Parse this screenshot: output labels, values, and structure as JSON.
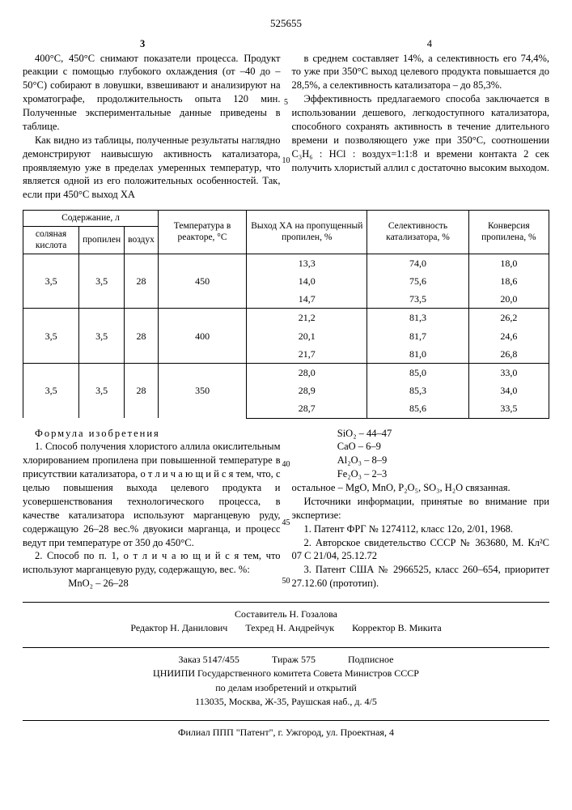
{
  "docNumber": "525655",
  "pageLeft": "3",
  "pageRight": "4",
  "lineMarks": {
    "a": "5",
    "b": "10",
    "c": "40",
    "d": "45",
    "e": "50"
  },
  "body": {
    "p1": "400°С, 450°С снимают показатели процесса. Продукт реакции с помощью глубокого охлаждения (от –40 до –50°С) собирают в ловушки, взвешивают и анализируют на хроматографе, продолжительность опыта 120 мин. Полученные экспериментальные данные приведены в таблице.",
    "p2": "Как видно из таблицы, полученные результаты наглядно демонстрируют наивысшую активность катализатора, проявляемую уже в пределах умеренных температур, что является одной из его положительных особенностей. Так, если при 450°С выход ХА",
    "p3": "в среднем составляет 14%, а селективность его 74,4%, то уже при 350°С выход целевого продукта повышается до 28,5%, а селективность катализатора – до 85,3%.",
    "p4": "Эффективность предлагаемого способа заключается в использовании дешевого, легкодоступного катализатора, способного сохранять активность в течение длительного времени и позволяющего уже при 350°С, соотношении C₃H₆ : HCl : воздух=1:1:8 и времени контакта 2 сек получить хлористый аллил с достаточно высоким выходом."
  },
  "table": {
    "headGroup1": "Содержание, л",
    "headTemp": "Температура в реакторе, °С",
    "headYield": "Выход ХА на пропущенный пропилен, %",
    "headSel": "Селективность катализатора, %",
    "headConv": "Конверсия пропилена, %",
    "sub1": "соляная кислота",
    "sub2": "пропилен",
    "sub3": "воздух",
    "groups": [
      {
        "hcl": "3,5",
        "prop": "3,5",
        "air": "28",
        "temp": "450",
        "rows": [
          [
            "13,3",
            "74,0",
            "18,0"
          ],
          [
            "14,0",
            "75,6",
            "18,6"
          ],
          [
            "14,7",
            "73,5",
            "20,0"
          ]
        ]
      },
      {
        "hcl": "3,5",
        "prop": "3,5",
        "air": "28",
        "temp": "400",
        "rows": [
          [
            "21,2",
            "81,3",
            "26,2"
          ],
          [
            "20,1",
            "81,7",
            "24,6"
          ],
          [
            "21,7",
            "81,0",
            "26,8"
          ]
        ]
      },
      {
        "hcl": "3,5",
        "prop": "3,5",
        "air": "28",
        "temp": "350",
        "rows": [
          [
            "28,0",
            "85,0",
            "33,0"
          ],
          [
            "28,9",
            "85,3",
            "34,0"
          ],
          [
            "28,7",
            "85,6",
            "33,5"
          ]
        ]
      }
    ]
  },
  "claims": {
    "title": "Формула изобретения",
    "c1": "1. Способ получения хлористого аллила окислительным хлорированием пропилена при повышенной температуре в присутствии катализатора, о т л и ч а ю щ и й с я тем, что, с целью повышения выхода целевого продукта и усовершенствования технологического процесса, в качестве катализатора используют марганцевую руду, содержащую 26–28 вес.% двуокиси марганца, и процесс ведут при температуре от 350 до 450°С.",
    "c2": "2. Способ по п. 1, о т л и ч а ю щ и й с я тем, что используют марганцевую руду, содержащую, вес. %:",
    "chem": [
      "MnO₂ – 26–28",
      "SiO₂ – 44–47",
      "CaO – 6–9",
      "Al₂O₃ – 8–9",
      "Fe₂O₃ – 2–3"
    ],
    "rest": "остальное – MgO, MnO, P₂O₅, SO₃, H₂O связанная.",
    "srcHead": "Источники информации, принятые во внимание при экспертизе:",
    "src1": "1. Патент ФРГ № 1274112, класс 12о, 2/01, 1968.",
    "src2": "2. Авторское свидетельство СССР № 363680, М. Кл²С 07 С 21/04, 25.12.72",
    "src3": "3. Патент США № 2966525, класс 260–654, приоритет 27.12.60 (прототип)."
  },
  "footer": {
    "comp": "Составитель Н. Гозалова",
    "ed": "Редактор Н. Данилович",
    "tech": "Техред Н. Андрейчук",
    "corr": "Корректор В. Микита",
    "order": "Заказ 5147/455",
    "tir": "Тираж 575",
    "sub": "Подписное",
    "org1": "ЦНИИПИ Государственного комитета Совета Министров СССР",
    "org2": "по делам изобретений и открытий",
    "addr": "113035, Москва, Ж-35, Раушская наб., д. 4/5",
    "fil": "Филиал ППП \"Патент\", г. Ужгород, ул. Проектная, 4"
  }
}
